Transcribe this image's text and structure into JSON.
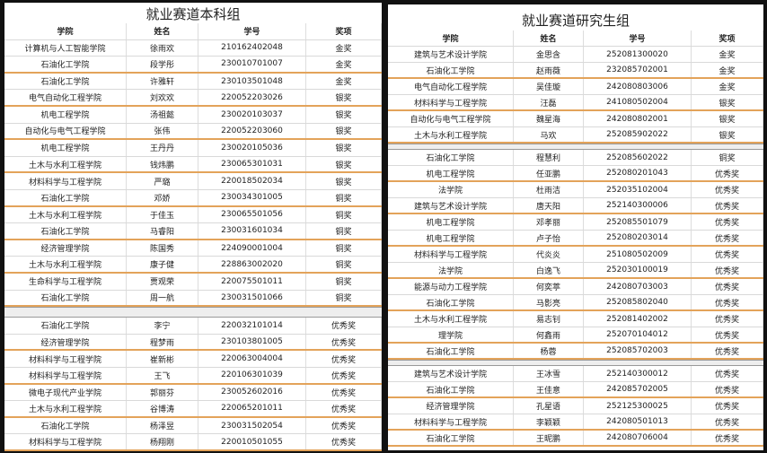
{
  "panels": [
    {
      "title": "就业赛道本科组",
      "headers": [
        "学院",
        "姓名",
        "学号",
        "奖项"
      ],
      "blocks": [
        [
          [
            "计算机与人工智能学院",
            "徐雨欢",
            "210162402048",
            "金奖"
          ],
          [
            "石油化工学院",
            "段学彤",
            "230010701007",
            "金奖"
          ],
          [
            "石油化工学院",
            "许雅轩",
            "230103501048",
            "金奖"
          ],
          [
            "电气自动化工程学院",
            "刘欢欢",
            "220052203026",
            "银奖"
          ],
          [
            "机电工程学院",
            "汤祖懿",
            "230020103037",
            "银奖"
          ],
          [
            "自动化与电气工程学院",
            "张伟",
            "220052203060",
            "银奖"
          ],
          [
            "机电工程学院",
            "王丹丹",
            "230020105036",
            "银奖"
          ],
          [
            "土木与水利工程学院",
            "钱炜鹏",
            "230065301031",
            "银奖"
          ],
          [
            "材料科学与工程学院",
            "严璐",
            "220018502034",
            "银奖"
          ],
          [
            "石油化工学院",
            "邓娇",
            "230034301005",
            "铜奖"
          ],
          [
            "土木与水利工程学院",
            "于佳玉",
            "230065501056",
            "铜奖"
          ],
          [
            "石油化工学院",
            "马睿阳",
            "230031601034",
            "铜奖"
          ],
          [
            "经济管理学院",
            "陈国秀",
            "224090001004",
            "铜奖"
          ],
          [
            "土木与水利工程学院",
            "康子健",
            "228863002020",
            "铜奖"
          ],
          [
            "生命科学与工程学院",
            "贾观荣",
            "220075501011",
            "铜奖"
          ],
          [
            "石油化工学院",
            "周一航",
            "230031501066",
            "铜奖"
          ]
        ],
        [
          [
            "石油化工学院",
            "李宁",
            "220032101014",
            "优秀奖"
          ],
          [
            "经济管理学院",
            "程梦雨",
            "230103801005",
            "优秀奖"
          ],
          [
            "材料科学与工程学院",
            "崔新彬",
            "220063004004",
            "优秀奖"
          ],
          [
            "材料科学与工程学院",
            "王飞",
            "220106301039",
            "优秀奖"
          ],
          [
            "微电子现代产业学院",
            "郭丽芬",
            "230052602016",
            "优秀奖"
          ],
          [
            "土木与水利工程学院",
            "谷博涛",
            "220065201011",
            "优秀奖"
          ],
          [
            "石油化工学院",
            "杨泽昱",
            "230031502054",
            "优秀奖"
          ],
          [
            "材料科学与工程学院",
            "杨翔刚",
            "220010501055",
            "优秀奖"
          ]
        ]
      ]
    },
    {
      "title": "就业赛道研究生组",
      "headers": [
        "学院",
        "姓名",
        "学号",
        "奖项"
      ],
      "blocks": [
        [
          [
            "建筑与艺术设计学院",
            "金思含",
            "252081300020",
            "金奖"
          ],
          [
            "石油化工学院",
            "赵雨薇",
            "232085702001",
            "金奖"
          ],
          [
            "电气自动化工程学院",
            "吴佳璇",
            "242080803006",
            "金奖"
          ],
          [
            "材料科学与工程学院",
            "汪磊",
            "241080502004",
            "银奖"
          ],
          [
            "自动化与电气工程学院",
            "魏星海",
            "242080802001",
            "银奖"
          ],
          [
            "土木与水利工程学院",
            "马欢",
            "252085902022",
            "银奖"
          ]
        ],
        [
          [
            "石油化工学院",
            "程慧利",
            "252085602022",
            "铜奖"
          ],
          [
            "机电工程学院",
            "任亚鹏",
            "252080201043",
            "优秀奖"
          ],
          [
            "法学院",
            "杜雨洁",
            "252035102004",
            "优秀奖"
          ],
          [
            "建筑与艺术设计学院",
            "唐天阳",
            "252140300006",
            "优秀奖"
          ],
          [
            "机电工程学院",
            "邓孝丽",
            "252085501079",
            "优秀奖"
          ],
          [
            "机电工程学院",
            "卢子怡",
            "252080203014",
            "优秀奖"
          ],
          [
            "材料科学与工程学院",
            "代炎炎",
            "251080502009",
            "优秀奖"
          ],
          [
            "法学院",
            "白逸飞",
            "252030100019",
            "优秀奖"
          ],
          [
            "能源与动力工程学院",
            "何奕葶",
            "242080703003",
            "优秀奖"
          ],
          [
            "石油化工学院",
            "马影亮",
            "252085802040",
            "优秀奖"
          ],
          [
            "土木与水利工程学院",
            "易志钊",
            "252081402002",
            "优秀奖"
          ],
          [
            "理学院",
            "何鑫雨",
            "252070104012",
            "优秀奖"
          ],
          [
            "石油化工学院",
            "杨蓉",
            "252085702003",
            "优秀奖"
          ]
        ],
        [
          [
            "建筑与艺术设计学院",
            "王冰雪",
            "252140300012",
            "优秀奖"
          ],
          [
            "石油化工学院",
            "王佳意",
            "242085702005",
            "优秀奖"
          ],
          [
            "经济管理学院",
            "孔星语",
            "252125300025",
            "优秀奖"
          ],
          [
            "材料科学与工程学院",
            "李颖颖",
            "242080501013",
            "优秀奖"
          ],
          [
            "石油化工学院",
            "王昵鹏",
            "242080706004",
            "优秀奖"
          ]
        ]
      ]
    }
  ]
}
